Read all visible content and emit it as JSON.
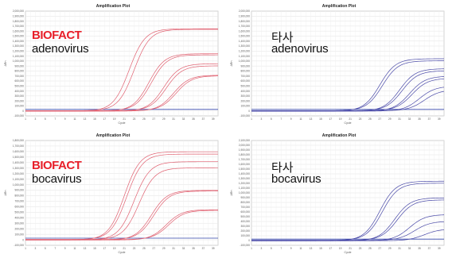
{
  "panels": [
    {
      "title": "Amplification Plot",
      "brand": "BIOFACT",
      "brand_color": "#e8202a",
      "target": "adenovirus",
      "line_color": "#e06070",
      "ytick_labels": [
        "2,000,000",
        "1,900,000",
        "1,800,000",
        "1,700,000",
        "1,600,000",
        "1,500,000",
        "1,400,000",
        "1,300,000",
        "1,200,000",
        "1,100,000",
        "1,000,000",
        "900,000",
        "800,000",
        "700,000",
        "600,000",
        "500,000",
        "400,000",
        "300,000",
        "200,000",
        "100,000",
        "0",
        "-100,000"
      ],
      "ylabel": "ΔRn",
      "xlabel": "Cycle"
    },
    {
      "title": "Amplification Plot",
      "brand": "타사",
      "brand_color": "#111111",
      "target": "adenovirus",
      "line_color": "#4a4aa8",
      "ytick_labels": [
        "2,000,000",
        "1,900,000",
        "1,800,000",
        "1,700,000",
        "1,600,000",
        "1,500,000",
        "1,400,000",
        "1,300,000",
        "1,200,000",
        "1,100,000",
        "1,000,000",
        "900,000",
        "800,000",
        "700,000",
        "600,000",
        "500,000",
        "400,000",
        "300,000",
        "200,000",
        "100,000",
        "0",
        "-100,000"
      ],
      "ylabel": "ΔRn",
      "xlabel": "Cycle"
    },
    {
      "title": "Amplification Plot",
      "brand": "BIOFACT",
      "brand_color": "#e8202a",
      "target": "bocavirus",
      "line_color": "#e06070",
      "ytick_labels": [
        "1,800,000",
        "1,700,000",
        "1,600,000",
        "1,500,000",
        "1,400,000",
        "1,300,000",
        "1,200,000",
        "1,100,000",
        "1,000,000",
        "900,000",
        "800,000",
        "700,000",
        "600,000",
        "500,000",
        "400,000",
        "300,000",
        "200,000",
        "100,000",
        "0",
        "-100,000"
      ],
      "ylabel": "ΔRn",
      "xlabel": "Cycle"
    },
    {
      "title": "Amplification Plot",
      "brand": "타사",
      "brand_color": "#111111",
      "target": "bocavirus",
      "line_color": "#4a4aa8",
      "ytick_labels": [
        "2,100,000",
        "2,000,000",
        "1,900,000",
        "1,800,000",
        "1,700,000",
        "1,600,000",
        "1,500,000",
        "1,400,000",
        "1,300,000",
        "1,200,000",
        "1,100,000",
        "1,000,000",
        "900,000",
        "800,000",
        "700,000",
        "600,000",
        "500,000",
        "400,000",
        "300,000",
        "200,000",
        "100,000",
        "0",
        "-100,000"
      ],
      "ylabel": "ΔRn",
      "xlabel": "Cycle"
    }
  ],
  "chart_data": [
    {
      "type": "line",
      "title": "Amplification Plot",
      "x": [
        1,
        2,
        3,
        4,
        5,
        6,
        7,
        8,
        9,
        10,
        11,
        12,
        13,
        14,
        15,
        16,
        17,
        18,
        19,
        20,
        21,
        22,
        23,
        24,
        25,
        26,
        27,
        28,
        29,
        30,
        31,
        32,
        33,
        34,
        35,
        36,
        37,
        38,
        39,
        40
      ],
      "xlabel": "Cycle",
      "ylabel": "ΔRn",
      "ylim": [
        -100000,
        2000000
      ],
      "curves": [
        {
          "ct": 22,
          "plateau": 1650000
        },
        {
          "ct": 23,
          "plateau": 1630000
        },
        {
          "ct": 26,
          "plateau": 1150000
        },
        {
          "ct": 26.5,
          "plateau": 1120000
        },
        {
          "ct": 29,
          "plateau": 950000
        },
        {
          "ct": 29.5,
          "plateau": 900000
        },
        {
          "ct": 31,
          "plateau": 720000
        },
        {
          "ct": 31.5,
          "plateau": 700000
        }
      ]
    },
    {
      "type": "line",
      "title": "Amplification Plot",
      "x": [
        1,
        2,
        3,
        4,
        5,
        6,
        7,
        8,
        9,
        10,
        11,
        12,
        13,
        14,
        15,
        16,
        17,
        18,
        19,
        20,
        21,
        22,
        23,
        24,
        25,
        26,
        27,
        28,
        29,
        30,
        31,
        32,
        33,
        34,
        35,
        36,
        37,
        38,
        39,
        40
      ],
      "xlabel": "Cycle",
      "ylabel": "ΔRn",
      "ylim": [
        -100000,
        2000000
      ],
      "curves": [
        {
          "ct": 27,
          "plateau": 1050000
        },
        {
          "ct": 27.5,
          "plateau": 1000000
        },
        {
          "ct": 31,
          "plateau": 850000
        },
        {
          "ct": 31.5,
          "plateau": 800000
        },
        {
          "ct": 33,
          "plateau": 700000
        },
        {
          "ct": 33.5,
          "plateau": 650000
        },
        {
          "ct": 35,
          "plateau": 500000
        },
        {
          "ct": 36,
          "plateau": 420000
        }
      ]
    },
    {
      "type": "line",
      "title": "Amplification Plot",
      "x": [
        1,
        2,
        3,
        4,
        5,
        6,
        7,
        8,
        9,
        10,
        11,
        12,
        13,
        14,
        15,
        16,
        17,
        18,
        19,
        20,
        21,
        22,
        23,
        24,
        25,
        26,
        27,
        28,
        29,
        30,
        31,
        32,
        33,
        34,
        35,
        36,
        37,
        38,
        39,
        40
      ],
      "xlabel": "Cycle",
      "ylabel": "ΔRn",
      "ylim": [
        -100000,
        1800000
      ],
      "curves": [
        {
          "ct": 21,
          "plateau": 1600000
        },
        {
          "ct": 21.5,
          "plateau": 1550000
        },
        {
          "ct": 23,
          "plateau": 1420000
        },
        {
          "ct": 24,
          "plateau": 1300000
        },
        {
          "ct": 26.5,
          "plateau": 900000
        },
        {
          "ct": 27,
          "plateau": 880000
        },
        {
          "ct": 29.5,
          "plateau": 550000
        },
        {
          "ct": 30,
          "plateau": 530000
        }
      ]
    },
    {
      "type": "line",
      "title": "Amplification Plot",
      "x": [
        1,
        2,
        3,
        4,
        5,
        6,
        7,
        8,
        9,
        10,
        11,
        12,
        13,
        14,
        15,
        16,
        17,
        18,
        19,
        20,
        21,
        22,
        23,
        24,
        25,
        26,
        27,
        28,
        29,
        30,
        31,
        32,
        33,
        34,
        35,
        36,
        37,
        38,
        39,
        40
      ],
      "xlabel": "Cycle",
      "ylabel": "ΔRn",
      "ylim": [
        -100000,
        2100000
      ],
      "curves": [
        {
          "ct": 27,
          "plateau": 1250000
        },
        {
          "ct": 27.5,
          "plateau": 1200000
        },
        {
          "ct": 30,
          "plateau": 900000
        },
        {
          "ct": 30.5,
          "plateau": 850000
        },
        {
          "ct": 33,
          "plateau": 550000
        },
        {
          "ct": 34,
          "plateau": 400000
        },
        {
          "ct": 36,
          "plateau": 250000
        }
      ]
    }
  ]
}
